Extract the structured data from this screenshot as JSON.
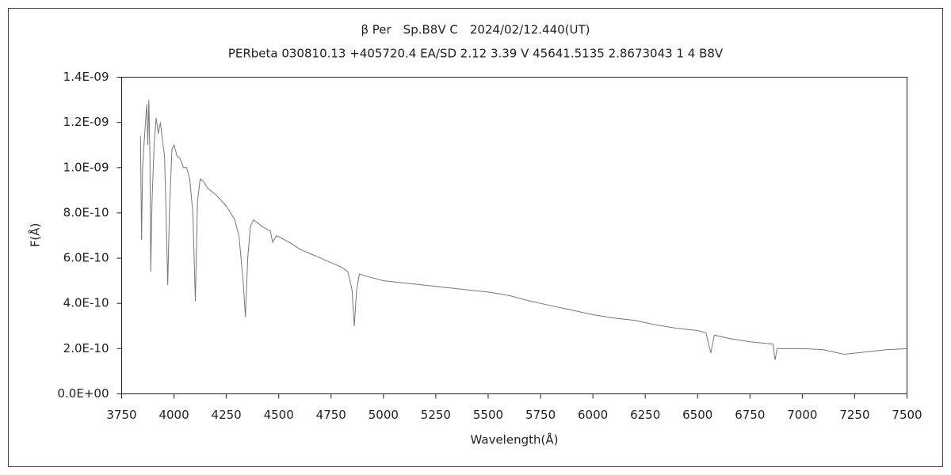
{
  "chart_data": {
    "type": "line",
    "title": "β Per　Sp.B8V C　2024/02/12.440(UT)",
    "subtitle": "PERbeta 030810.13 +405720.4 EA/SD 2.12 3.39 V 45641.5135 2.8673043 1 4 B8V",
    "xlabel": "Wavelength(Å)",
    "ylabel": "F(Å)",
    "color": "#777777",
    "x": [
      3840,
      3845,
      3850,
      3860,
      3870,
      3875,
      3880,
      3885,
      3889,
      3895,
      3905,
      3915,
      3925,
      3935,
      3945,
      3955,
      3962,
      3970,
      3978,
      3990,
      4000,
      4015,
      4030,
      4045,
      4060,
      4075,
      4090,
      4102,
      4112,
      4125,
      4140,
      4160,
      4200,
      4250,
      4290,
      4310,
      4330,
      4341,
      4352,
      4365,
      4380,
      4420,
      4460,
      4471,
      4490,
      4550,
      4600,
      4650,
      4700,
      4750,
      4800,
      4830,
      4850,
      4861,
      4872,
      4885,
      4920,
      5000,
      5100,
      5250,
      5400,
      5500,
      5600,
      5700,
      5800,
      5900,
      6000,
      6100,
      6200,
      6300,
      6400,
      6500,
      6540,
      6563,
      6580,
      6650,
      6750,
      6860,
      6870,
      6880,
      6900,
      7000,
      7100,
      7150,
      7200,
      7250,
      7300,
      7400,
      7500
    ],
    "values": [
      1.14e-09,
      6.8e-10,
      1e-09,
      1.15e-09,
      1.28e-09,
      1.1e-09,
      1.3e-09,
      1.05e-09,
      5.4e-10,
      8.5e-10,
      1.1e-09,
      1.22e-09,
      1.15e-09,
      1.2e-09,
      1.12e-09,
      1.05e-09,
      8e-10,
      4.8e-10,
      8e-10,
      1.08e-09,
      1.1e-09,
      1.05e-09,
      1.04e-09,
      1e-09,
      1e-09,
      9.5e-10,
      8e-10,
      4.1e-10,
      8.5e-10,
      9.5e-10,
      9.4e-10,
      9.1e-10,
      8.8e-10,
      8.3e-10,
      7.7e-10,
      7e-10,
      5e-10,
      3.4e-10,
      6e-10,
      7.4e-10,
      7.7e-10,
      7.4e-10,
      7.2e-10,
      6.7e-10,
      7e-10,
      6.7e-10,
      6.4e-10,
      6.2e-10,
      6e-10,
      5.8e-10,
      5.6e-10,
      5.4e-10,
      4.6e-10,
      3e-10,
      4.6e-10,
      5.3e-10,
      5.2e-10,
      5e-10,
      4.9e-10,
      4.75e-10,
      4.6e-10,
      4.5e-10,
      4.35e-10,
      4.1e-10,
      3.9e-10,
      3.7e-10,
      3.5e-10,
      3.35e-10,
      3.25e-10,
      3.05e-10,
      2.9e-10,
      2.8e-10,
      2.7e-10,
      1.8e-10,
      2.6e-10,
      2.45e-10,
      2.3e-10,
      2.2e-10,
      1.5e-10,
      2e-10,
      2e-10,
      2e-10,
      1.95e-10,
      1.85e-10,
      1.75e-10,
      1.8e-10,
      1.85e-10,
      1.95e-10,
      2e-10
    ],
    "xlim": [
      3750,
      7500
    ],
    "xticks": [
      3750,
      4000,
      4250,
      4500,
      4750,
      5000,
      5250,
      5500,
      5750,
      6000,
      6250,
      6500,
      6750,
      7000,
      7250,
      7500
    ],
    "ylim": [
      0,
      1.4e-09
    ],
    "yticks": [
      {
        "value": 0,
        "label": "0.0E+00"
      },
      {
        "value": 2e-10,
        "label": "2.0E-10"
      },
      {
        "value": 4e-10,
        "label": "4.0E-10"
      },
      {
        "value": 6e-10,
        "label": "6.0E-10"
      },
      {
        "value": 8e-10,
        "label": "8.0E-10"
      },
      {
        "value": 1e-09,
        "label": "1.0E-09"
      },
      {
        "value": 1.2e-09,
        "label": "1.2E-09"
      },
      {
        "value": 1.4e-09,
        "label": "1.4E-09"
      }
    ],
    "grid": false
  }
}
